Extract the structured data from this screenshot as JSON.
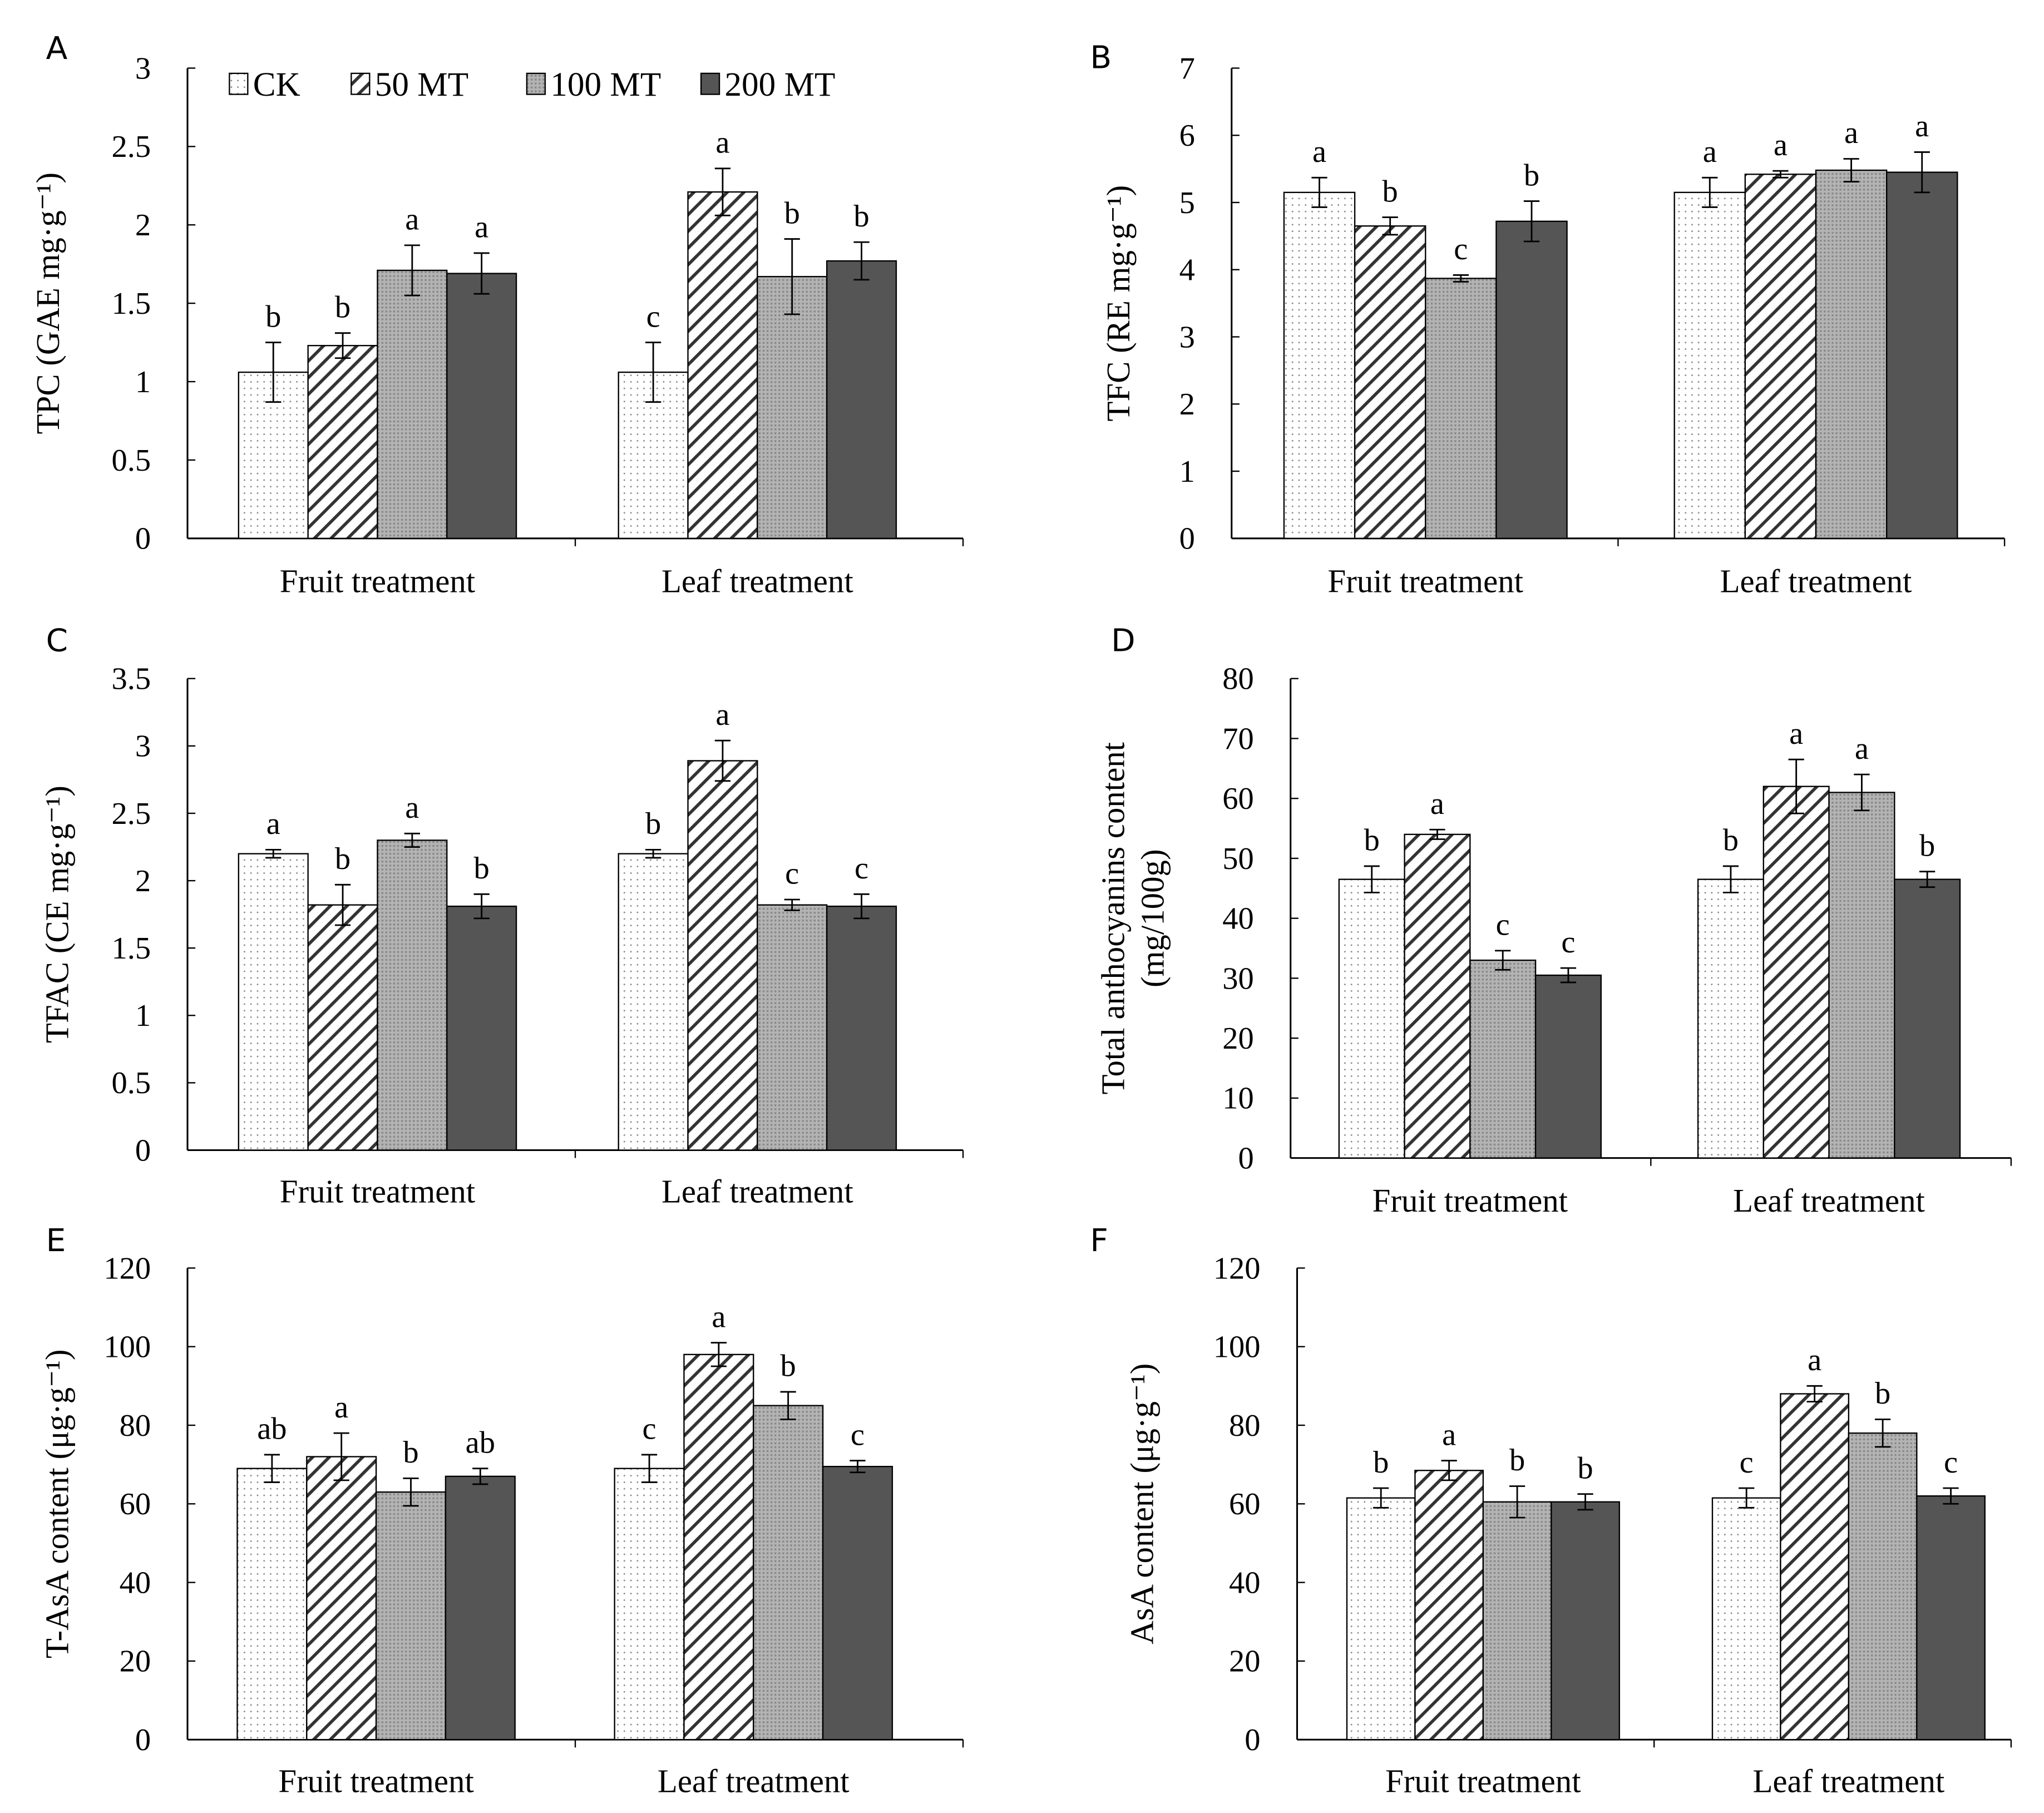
{
  "legend": [
    "CK",
    "50 MT",
    "100 MT",
    "200 MT"
  ],
  "colors": {
    "ck": "#ffffff",
    "mt50": "#ffffff",
    "mt100": "#a8a8a8",
    "mt200": "#555555"
  },
  "chart_data": [
    {
      "panel": "A",
      "type": "bar",
      "ylabel": "TPC (GAE mg·g⁻¹)",
      "ylim": [
        0,
        3
      ],
      "yticks": [
        "0",
        "0.5",
        "1",
        "1.5",
        "2",
        "2.5",
        "3"
      ],
      "categories": [
        "Fruit treatment",
        "Leaf treatment"
      ],
      "series": [
        {
          "name": "CK",
          "values": [
            1.06,
            1.06
          ],
          "errors": [
            0.19,
            0.19
          ],
          "letters": [
            "b",
            "c"
          ]
        },
        {
          "name": "50 MT",
          "values": [
            1.23,
            2.21
          ],
          "errors": [
            0.08,
            0.15
          ],
          "letters": [
            "b",
            "a"
          ]
        },
        {
          "name": "100 MT",
          "values": [
            1.71,
            1.67
          ],
          "errors": [
            0.16,
            0.24
          ],
          "letters": [
            "a",
            "b"
          ]
        },
        {
          "name": "200 MT",
          "values": [
            1.69,
            1.77
          ],
          "errors": [
            0.13,
            0.12
          ],
          "letters": [
            "a",
            "b"
          ]
        }
      ]
    },
    {
      "panel": "B",
      "type": "bar",
      "ylabel": "TFC (RE mg·g⁻¹)",
      "ylim": [
        0,
        7
      ],
      "yticks": [
        "0",
        "1",
        "2",
        "3",
        "4",
        "5",
        "6",
        "7"
      ],
      "categories": [
        "Fruit treatment",
        "Leaf treatment"
      ],
      "series": [
        {
          "name": "CK",
          "values": [
            5.15,
            5.15
          ],
          "errors": [
            0.22,
            0.22
          ],
          "letters": [
            "a",
            "a"
          ]
        },
        {
          "name": "50 MT",
          "values": [
            4.65,
            5.42
          ],
          "errors": [
            0.13,
            0.05
          ],
          "letters": [
            "b",
            "a"
          ]
        },
        {
          "name": "100 MT",
          "values": [
            3.87,
            5.48
          ],
          "errors": [
            0.05,
            0.17
          ],
          "letters": [
            "c",
            "a"
          ]
        },
        {
          "name": "200 MT",
          "values": [
            4.72,
            5.45
          ],
          "errors": [
            0.3,
            0.3
          ],
          "letters": [
            "b",
            "a"
          ]
        }
      ]
    },
    {
      "panel": "C",
      "type": "bar",
      "ylabel": "TFAC (CE mg·g⁻¹)",
      "ylim": [
        0,
        3.5
      ],
      "yticks": [
        "0",
        "0.5",
        "1",
        "1.5",
        "2",
        "2.5",
        "3",
        "3.5"
      ],
      "categories": [
        "Fruit treatment",
        "Leaf treatment"
      ],
      "series": [
        {
          "name": "CK",
          "values": [
            2.2,
            2.2
          ],
          "errors": [
            0.03,
            0.03
          ],
          "letters": [
            "a",
            "b"
          ]
        },
        {
          "name": "50 MT",
          "values": [
            1.82,
            2.89
          ],
          "errors": [
            0.15,
            0.15
          ],
          "letters": [
            "b",
            "a"
          ]
        },
        {
          "name": "100 MT",
          "values": [
            2.3,
            1.82
          ],
          "errors": [
            0.05,
            0.04
          ],
          "letters": [
            "a",
            "c"
          ]
        },
        {
          "name": "200 MT",
          "values": [
            1.81,
            1.81
          ],
          "errors": [
            0.09,
            0.09
          ],
          "letters": [
            "b",
            "c"
          ]
        }
      ]
    },
    {
      "panel": "D",
      "type": "bar",
      "ylabel": "Total anthocyanins content",
      "ylabel2": "(mg/100g)",
      "ylim": [
        0,
        80
      ],
      "yticks": [
        "0",
        "10",
        "20",
        "30",
        "40",
        "50",
        "60",
        "70",
        "80"
      ],
      "categories": [
        "Fruit treatment",
        "Leaf treatment"
      ],
      "series": [
        {
          "name": "CK",
          "values": [
            46.5,
            46.5
          ],
          "errors": [
            2.2,
            2.2
          ],
          "letters": [
            "b",
            "b"
          ]
        },
        {
          "name": "50 MT",
          "values": [
            54,
            62
          ],
          "errors": [
            0.8,
            4.5
          ],
          "letters": [
            "a",
            "a"
          ]
        },
        {
          "name": "100 MT",
          "values": [
            33,
            61
          ],
          "errors": [
            1.6,
            3
          ],
          "letters": [
            "c",
            "a"
          ]
        },
        {
          "name": "200 MT",
          "values": [
            30.5,
            46.5
          ],
          "errors": [
            1.2,
            1.3
          ],
          "letters": [
            "c",
            "b"
          ]
        }
      ]
    },
    {
      "panel": "E",
      "type": "bar",
      "ylabel": "T-AsA content (μg·g⁻¹)",
      "ylim": [
        0,
        120
      ],
      "yticks": [
        "0",
        "20",
        "40",
        "60",
        "80",
        "100",
        "120"
      ],
      "categories": [
        "Fruit treatment",
        "Leaf treatment"
      ],
      "series": [
        {
          "name": "CK",
          "values": [
            69,
            69
          ],
          "errors": [
            3.5,
            3.5
          ],
          "letters": [
            "ab",
            "c"
          ]
        },
        {
          "name": "50 MT",
          "values": [
            72,
            98
          ],
          "errors": [
            6,
            3
          ],
          "letters": [
            "a",
            "a"
          ]
        },
        {
          "name": "100 MT",
          "values": [
            63,
            85
          ],
          "errors": [
            3.5,
            3.5
          ],
          "letters": [
            "b",
            "b"
          ]
        },
        {
          "name": "200 MT",
          "values": [
            67,
            69.5
          ],
          "errors": [
            2,
            1.5
          ],
          "letters": [
            "ab",
            "c"
          ]
        }
      ]
    },
    {
      "panel": "F",
      "type": "bar",
      "ylabel": "AsA content (μg·g⁻¹)",
      "ylim": [
        0,
        120
      ],
      "yticks": [
        "0",
        "20",
        "40",
        "60",
        "80",
        "100",
        "120"
      ],
      "categories": [
        "Fruit treatment",
        "Leaf treatment"
      ],
      "series": [
        {
          "name": "CK",
          "values": [
            61.5,
            61.5
          ],
          "errors": [
            2.5,
            2.5
          ],
          "letters": [
            "b",
            "c"
          ]
        },
        {
          "name": "50 MT",
          "values": [
            68.5,
            88
          ],
          "errors": [
            2.5,
            2
          ],
          "letters": [
            "a",
            "a"
          ]
        },
        {
          "name": "100 MT",
          "values": [
            60.5,
            78
          ],
          "errors": [
            4,
            3.5
          ],
          "letters": [
            "b",
            "b"
          ]
        },
        {
          "name": "200 MT",
          "values": [
            60.5,
            62
          ],
          "errors": [
            2,
            2
          ],
          "letters": [
            "b",
            "c"
          ]
        }
      ]
    }
  ]
}
